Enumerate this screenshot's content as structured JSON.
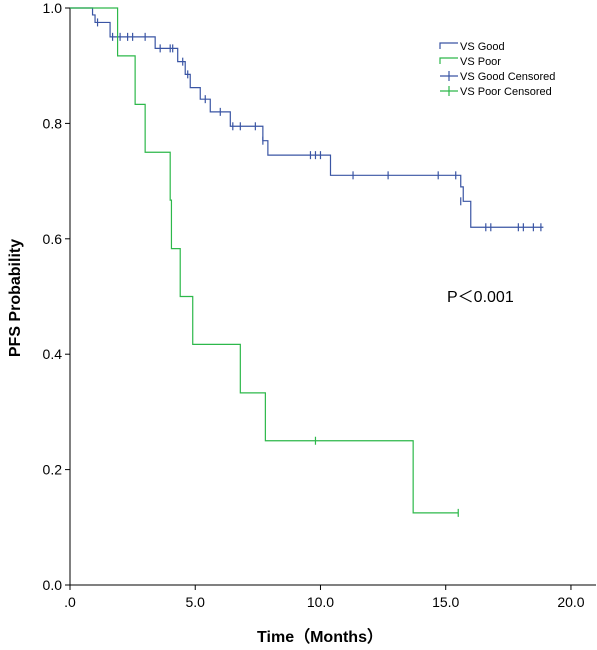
{
  "chart_data": {
    "type": "line",
    "title": "",
    "xlabel": "Time（Months）",
    "ylabel": "PFS Probability",
    "xlim": [
      0,
      21
    ],
    "ylim": [
      0,
      1.0
    ],
    "x_ticks": [
      0,
      5,
      10,
      15,
      20
    ],
    "x_tick_labels": [
      ".0",
      "5.0",
      "10.0",
      "15.0",
      "20.0"
    ],
    "y_ticks": [
      0,
      0.2,
      0.4,
      0.6,
      0.8,
      1.0
    ],
    "y_tick_labels": [
      "0.0",
      "0.2",
      "0.4",
      "0.6",
      "0.8",
      "1.0"
    ],
    "grid": false,
    "legend_placement": "top-right",
    "annotation": "P＜0.001",
    "series": [
      {
        "name": "VS Good",
        "color": "#3a55a4",
        "step_x": [
          0,
          0.9,
          1.0,
          1.6,
          3.4,
          4.3,
          4.6,
          4.8,
          5.2,
          5.6,
          6.4,
          7.7,
          7.9,
          10.4,
          15.6,
          15.7,
          16.0,
          18.9
        ],
        "step_y": [
          1.0,
          0.988,
          0.975,
          0.95,
          0.93,
          0.907,
          0.885,
          0.862,
          0.842,
          0.82,
          0.795,
          0.77,
          0.745,
          0.71,
          0.69,
          0.665,
          0.62,
          0.62
        ],
        "censored_x": [
          1.1,
          1.7,
          2.0,
          2.3,
          2.5,
          3.0,
          3.6,
          4.0,
          4.1,
          4.5,
          4.7,
          5.4,
          6.0,
          6.5,
          6.8,
          7.4,
          7.7,
          9.6,
          9.8,
          10.0,
          11.3,
          12.7,
          14.7,
          15.4,
          15.6,
          16.6,
          16.8,
          17.9,
          18.1,
          18.5,
          18.8
        ],
        "censored_y": [
          0.975,
          0.95,
          0.95,
          0.95,
          0.95,
          0.95,
          0.93,
          0.93,
          0.93,
          0.907,
          0.885,
          0.842,
          0.82,
          0.795,
          0.795,
          0.795,
          0.77,
          0.745,
          0.745,
          0.745,
          0.71,
          0.71,
          0.71,
          0.71,
          0.665,
          0.62,
          0.62,
          0.62,
          0.62,
          0.62,
          0.62
        ]
      },
      {
        "name": "VS Poor",
        "color": "#2db84a",
        "step_x": [
          0,
          1.9,
          2.6,
          3.0,
          4.0,
          4.05,
          4.4,
          4.9,
          6.8,
          7.8,
          13.7,
          15.5
        ],
        "step_y": [
          1.0,
          0.917,
          0.833,
          0.75,
          0.667,
          0.583,
          0.5,
          0.417,
          0.333,
          0.25,
          0.125,
          0.125
        ],
        "censored_x": [
          9.8,
          15.5
        ],
        "censored_y": [
          0.25,
          0.125
        ]
      }
    ],
    "legend": [
      {
        "label": "VS Good",
        "kind": "line",
        "color": "#3a55a4"
      },
      {
        "label": "VS Poor",
        "kind": "line",
        "color": "#2db84a"
      },
      {
        "label": "VS Good Censored",
        "kind": "censor",
        "color": "#3a55a4"
      },
      {
        "label": "VS Poor Censored",
        "kind": "censor",
        "color": "#2db84a"
      }
    ]
  }
}
